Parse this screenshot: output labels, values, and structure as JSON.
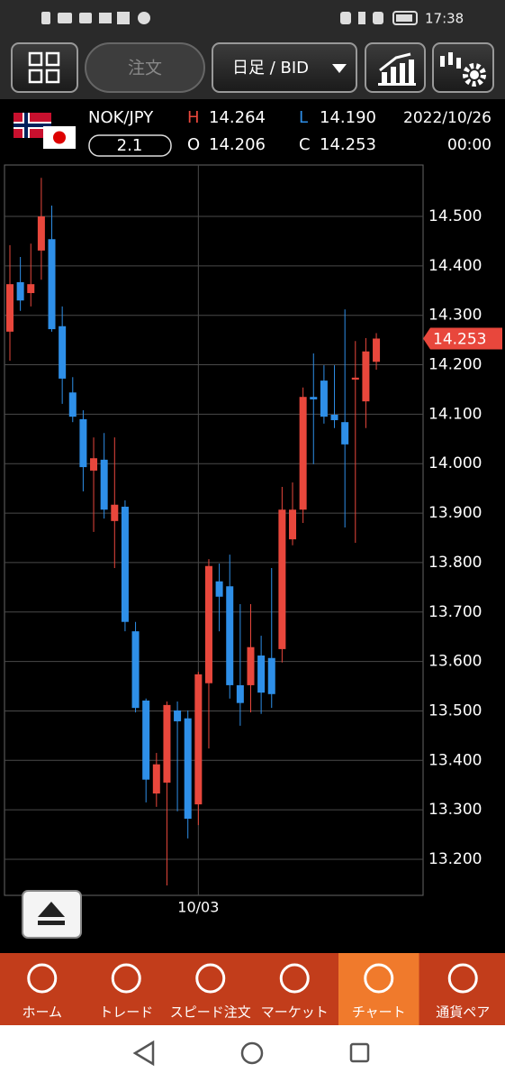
{
  "status_bar": {
    "time": "17:38"
  },
  "toolbar": {
    "order_button": "注文",
    "timeframe": "日足 / BID"
  },
  "quote": {
    "pair": "NOK/JPY",
    "spread": "2.1",
    "high_label": "H",
    "high": "14.264",
    "low_label": "L",
    "low": "14.190",
    "open_label": "O",
    "open": "14.206",
    "close_label": "C",
    "close": "14.253",
    "date": "2022/10/26",
    "time": "00:00"
  },
  "chart_data": {
    "type": "candlestick",
    "categories": [
      null,
      null,
      null,
      null,
      null,
      null,
      null,
      null,
      null,
      null,
      null,
      null,
      null,
      null,
      null,
      null,
      null,
      null,
      "10/03",
      null,
      null,
      null,
      null,
      null,
      null,
      null,
      null,
      null,
      null,
      null,
      null,
      null,
      null,
      null,
      null,
      null
    ],
    "open": [
      14.267,
      14.367,
      14.345,
      14.431,
      14.454,
      14.278,
      14.144,
      14.09,
      13.986,
      14.008,
      13.884,
      13.913,
      13.661,
      13.521,
      13.333,
      13.355,
      13.501,
      13.485,
      13.311,
      13.556,
      13.762,
      13.752,
      13.552,
      13.552,
      13.612,
      13.607,
      13.625,
      13.847,
      13.907,
      14.135,
      14.168,
      14.099,
      14.084,
      14.17,
      14.126,
      14.206
    ],
    "high": [
      14.442,
      14.418,
      14.445,
      14.578,
      14.522,
      14.318,
      14.175,
      14.108,
      14.053,
      14.062,
      14.053,
      13.926,
      13.68,
      13.525,
      13.415,
      13.519,
      13.519,
      13.501,
      13.579,
      13.807,
      13.798,
      13.816,
      13.716,
      13.716,
      13.652,
      13.789,
      13.953,
      13.962,
      14.154,
      14.223,
      14.199,
      14.199,
      14.312,
      14.248,
      14.254,
      14.264
    ],
    "low": [
      14.208,
      14.309,
      14.318,
      14.372,
      14.267,
      14.121,
      14.084,
      13.944,
      13.862,
      13.889,
      13.789,
      13.661,
      13.497,
      13.315,
      13.306,
      13.147,
      13.297,
      13.242,
      13.269,
      13.424,
      13.661,
      13.525,
      13.47,
      13.497,
      13.494,
      13.506,
      13.598,
      13.835,
      13.88,
      13.999,
      14.081,
      14.072,
      13.871,
      13.84,
      14.072,
      14.19
    ],
    "close": [
      14.363,
      14.33,
      14.363,
      14.5,
      14.272,
      14.172,
      14.095,
      13.993,
      14.011,
      13.907,
      13.917,
      13.68,
      13.506,
      13.361,
      13.392,
      13.512,
      13.479,
      13.282,
      13.574,
      13.793,
      13.731,
      13.552,
      13.516,
      13.629,
      13.537,
      13.534,
      13.907,
      13.907,
      14.135,
      14.13,
      14.095,
      14.088,
      14.039,
      14.174,
      14.227,
      14.253
    ],
    "up_color": "#e8473c",
    "down_color": "#2e8fe8",
    "ylim": [
      13.127,
      14.604
    ],
    "yticks": [
      {
        "value": 13.2,
        "label": "13.200"
      },
      {
        "value": 13.3,
        "label": "13.300"
      },
      {
        "value": 13.4,
        "label": "13.400"
      },
      {
        "value": 13.5,
        "label": "13.500"
      },
      {
        "value": 13.6,
        "label": "13.600"
      },
      {
        "value": 13.7,
        "label": "13.700"
      },
      {
        "value": 13.8,
        "label": "13.800"
      },
      {
        "value": 13.9,
        "label": "13.900"
      },
      {
        "value": 14.0,
        "label": "14.000"
      },
      {
        "value": 14.1,
        "label": "14.100"
      },
      {
        "value": 14.2,
        "label": "14.200"
      },
      {
        "value": 14.3,
        "label": "14.300"
      },
      {
        "value": 14.4,
        "label": "14.400"
      },
      {
        "value": 14.5,
        "label": "14.500"
      }
    ],
    "grid": true,
    "price_marker": {
      "value": 14.253,
      "label": "14.253"
    }
  },
  "nav": {
    "items": [
      "ホーム",
      "トレード",
      "スピード注文",
      "マーケット",
      "チャート",
      "通貨ペア"
    ],
    "selected": 4
  }
}
